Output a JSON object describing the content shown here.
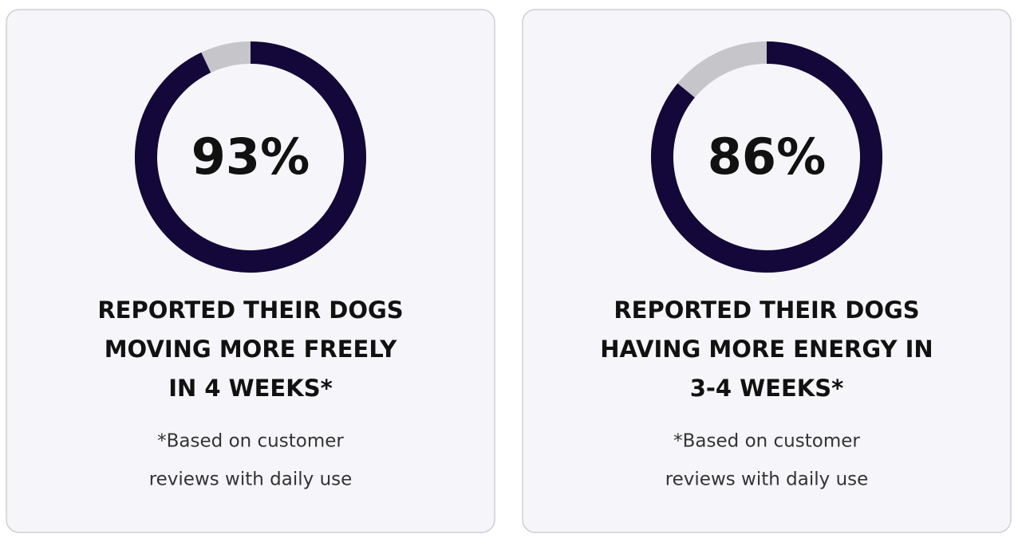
{
  "cards": [
    {
      "value": 93,
      "value_label": "93%",
      "heading": [
        "REPORTED THEIR DOGS",
        "MOVING MORE FREELY",
        "IN 4 WEEKS*"
      ],
      "note": [
        "*Based on customer",
        "reviews with daily use"
      ]
    },
    {
      "value": 86,
      "value_label": "86%",
      "heading": [
        "REPORTED THEIR DOGS",
        "HAVING MORE ENERGY IN",
        "3-4 WEEKS*"
      ],
      "note": [
        "*Based on customer",
        "reviews with daily use"
      ]
    }
  ]
}
